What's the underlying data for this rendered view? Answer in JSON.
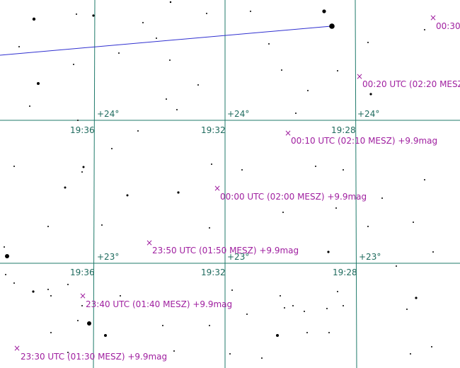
{
  "colors": {
    "background": "#ffffff",
    "grid": "#1f7a6a",
    "grid_label": "#1f6b5e",
    "track": "#a020a0",
    "star": "#000000",
    "line": "#3030d0"
  },
  "grid": {
    "ra_labels_upper": [
      "19:36",
      "19:32",
      "19:28"
    ],
    "ra_labels_lower": [
      "19:36",
      "19:32",
      "19:28"
    ],
    "dec_labels_upper": [
      "+24°",
      "+24°",
      "+24°"
    ],
    "dec_labels_lower": [
      "+23°",
      "+23°",
      "+23°"
    ]
  },
  "track": [
    {
      "mark": "×",
      "label": "00:30"
    },
    {
      "mark": "×",
      "label": "00:20 UTC (02:20 MESZ"
    },
    {
      "mark": "×",
      "label": "00:10 UTC (02:10 MESZ) +9.9mag"
    },
    {
      "mark": "×",
      "label": "00:00 UTC (02:00 MESZ) +9.9mag"
    },
    {
      "mark": "×",
      "label": "23:50 UTC (01:50 MESZ) +9.9mag"
    },
    {
      "mark": "×",
      "label": "23:40 UTC (01:40 MESZ) +9.9mag"
    },
    {
      "mark": "×",
      "label": "23:30 UTC (01:30 MESZ) +9.9mag"
    }
  ]
}
